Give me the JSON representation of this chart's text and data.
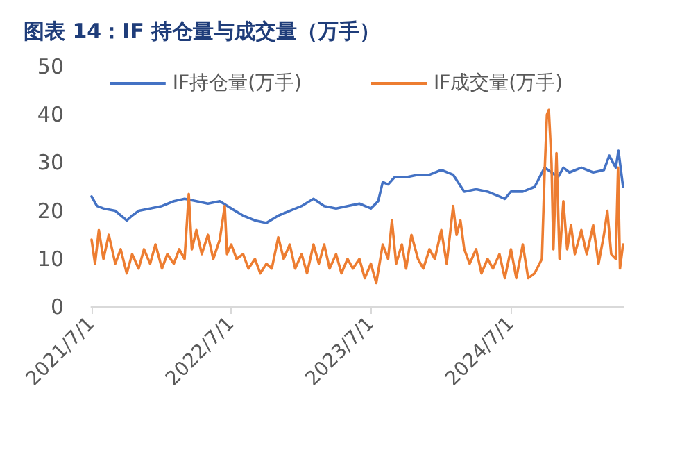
{
  "chart_data": {
    "type": "line",
    "title": "图表 14：IF 持仓量与成交量（万手）",
    "xlim": [
      "2021-07-01",
      "2025-04-20"
    ],
    "xticks": [
      {
        "value": "2021-07-01",
        "label": "2021/7/1"
      },
      {
        "value": "2022-07-01",
        "label": "2022/7/1"
      },
      {
        "value": "2023-07-01",
        "label": "2023/7/1"
      },
      {
        "value": "2024-07-01",
        "label": "2024/7/1"
      }
    ],
    "ylim": [
      0,
      50
    ],
    "yticks": [
      0,
      10,
      20,
      30,
      40,
      50
    ],
    "grid": false,
    "legend": "top",
    "marker": "none",
    "line_style": "solid",
    "series": [
      {
        "name": "IF持仓量(万手)",
        "color": "#4472c4",
        "x": [
          "2021-07-01",
          "2021-07-15",
          "2021-08-01",
          "2021-09-01",
          "2021-10-01",
          "2021-10-15",
          "2021-11-01",
          "2021-12-01",
          "2022-01-01",
          "2022-02-01",
          "2022-03-01",
          "2022-04-01",
          "2022-05-01",
          "2022-06-01",
          "2022-07-01",
          "2022-08-01",
          "2022-09-01",
          "2022-10-01",
          "2022-11-01",
          "2022-12-01",
          "2023-01-01",
          "2023-02-01",
          "2023-03-01",
          "2023-04-01",
          "2023-05-01",
          "2023-06-01",
          "2023-07-01",
          "2023-07-20",
          "2023-08-01",
          "2023-08-15",
          "2023-09-01",
          "2023-10-01",
          "2023-11-01",
          "2023-12-01",
          "2024-01-01",
          "2024-02-01",
          "2024-03-01",
          "2024-04-01",
          "2024-05-01",
          "2024-06-01",
          "2024-06-15",
          "2024-07-01",
          "2024-08-01",
          "2024-09-01",
          "2024-09-27",
          "2024-10-15",
          "2024-11-01",
          "2024-11-15",
          "2024-12-01",
          "2025-01-01",
          "2025-02-01",
          "2025-03-01",
          "2025-03-15",
          "2025-04-01",
          "2025-04-08",
          "2025-04-20"
        ],
        "values": [
          23,
          21,
          20.5,
          20,
          18,
          19,
          20,
          20.5,
          21,
          22,
          22.5,
          22,
          21.5,
          22,
          20.5,
          19,
          18,
          17.5,
          19,
          20,
          21,
          22.5,
          21,
          20.5,
          21,
          21.5,
          20.5,
          22,
          26,
          25.5,
          27,
          27,
          27.5,
          27.5,
          28.5,
          27.5,
          24,
          24.5,
          24,
          23,
          22.5,
          24,
          24,
          25,
          29,
          28,
          27,
          29,
          28,
          29,
          28,
          28.5,
          31.5,
          29,
          32.5,
          25
        ]
      },
      {
        "name": "IF成交量(万手)",
        "color": "#ed7d31",
        "x": [
          "2021-07-01",
          "2021-07-10",
          "2021-07-20",
          "2021-08-01",
          "2021-08-15",
          "2021-09-01",
          "2021-09-15",
          "2021-10-01",
          "2021-10-15",
          "2021-11-01",
          "2021-11-15",
          "2021-12-01",
          "2021-12-15",
          "2022-01-01",
          "2022-01-15",
          "2022-02-01",
          "2022-02-15",
          "2022-03-01",
          "2022-03-12",
          "2022-03-20",
          "2022-04-01",
          "2022-04-15",
          "2022-05-01",
          "2022-05-15",
          "2022-06-01",
          "2022-06-14",
          "2022-06-20",
          "2022-07-01",
          "2022-07-15",
          "2022-08-01",
          "2022-08-15",
          "2022-09-01",
          "2022-09-15",
          "2022-10-01",
          "2022-10-15",
          "2022-11-01",
          "2022-11-15",
          "2022-12-01",
          "2022-12-15",
          "2023-01-01",
          "2023-01-15",
          "2023-02-01",
          "2023-02-15",
          "2023-03-01",
          "2023-03-15",
          "2023-04-01",
          "2023-04-15",
          "2023-05-01",
          "2023-05-15",
          "2023-06-01",
          "2023-06-15",
          "2023-07-01",
          "2023-07-15",
          "2023-08-01",
          "2023-08-15",
          "2023-08-25",
          "2023-09-05",
          "2023-09-20",
          "2023-10-01",
          "2023-10-15",
          "2023-11-01",
          "2023-11-15",
          "2023-12-01",
          "2023-12-15",
          "2024-01-01",
          "2024-01-15",
          "2024-02-01",
          "2024-02-10",
          "2024-02-20",
          "2024-03-01",
          "2024-03-15",
          "2024-04-01",
          "2024-04-15",
          "2024-05-01",
          "2024-05-15",
          "2024-06-01",
          "2024-06-15",
          "2024-07-01",
          "2024-07-15",
          "2024-08-01",
          "2024-08-15",
          "2024-09-01",
          "2024-09-20",
          "2024-09-27",
          "2024-10-03",
          "2024-10-08",
          "2024-10-15",
          "2024-10-20",
          "2024-10-28",
          "2024-11-05",
          "2024-11-15",
          "2024-11-25",
          "2024-12-05",
          "2024-12-15",
          "2025-01-01",
          "2025-01-15",
          "2025-02-01",
          "2025-02-15",
          "2025-03-01",
          "2025-03-10",
          "2025-03-20",
          "2025-04-01",
          "2025-04-07",
          "2025-04-12",
          "2025-04-20"
        ],
        "values": [
          14,
          9,
          16,
          10,
          15,
          9,
          12,
          7,
          11,
          8,
          12,
          9,
          13,
          8,
          11,
          9,
          12,
          10,
          23.5,
          12,
          16,
          11,
          15,
          10,
          14,
          21,
          11,
          13,
          10,
          11,
          8,
          10,
          7,
          9,
          8,
          14.5,
          10,
          13,
          8,
          11,
          7,
          13,
          9,
          13,
          8,
          11,
          7,
          10,
          8,
          10,
          6,
          9,
          5,
          13,
          10,
          18,
          9,
          13,
          8,
          15,
          10,
          8,
          12,
          10,
          16,
          9,
          21,
          15,
          18,
          12,
          9,
          12,
          7,
          10,
          8,
          11,
          6,
          12,
          6,
          13,
          6,
          7,
          10,
          28,
          40,
          41,
          30,
          12,
          32,
          10,
          22,
          12,
          17,
          11,
          16,
          11,
          17,
          9,
          15,
          20,
          11,
          10,
          29,
          8,
          13
        ]
      }
    ]
  }
}
